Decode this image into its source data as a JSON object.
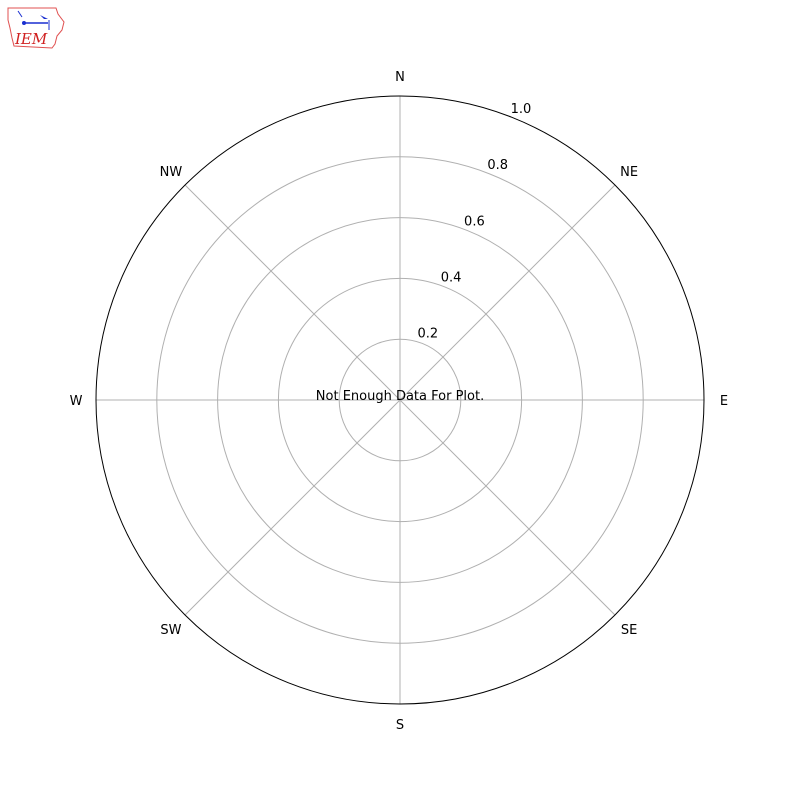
{
  "logo": {
    "text": "IEM",
    "colors": {
      "outline": "#e05050",
      "symbol": "#1a2fd0",
      "text": "#d02020"
    }
  },
  "chart_data": {
    "type": "polar",
    "title": "",
    "message": "Not Enough Data For Plot.",
    "direction_labels": [
      "N",
      "NE",
      "E",
      "SE",
      "S",
      "SW",
      "W",
      "NW"
    ],
    "radial_ticks": [
      0.2,
      0.4,
      0.6,
      0.8,
      1.0
    ],
    "radial_tick_labels": [
      "0.2",
      "0.4",
      "0.6",
      "0.8",
      "1.0"
    ],
    "rlim": [
      0,
      1.0
    ],
    "grid": true,
    "series": []
  }
}
